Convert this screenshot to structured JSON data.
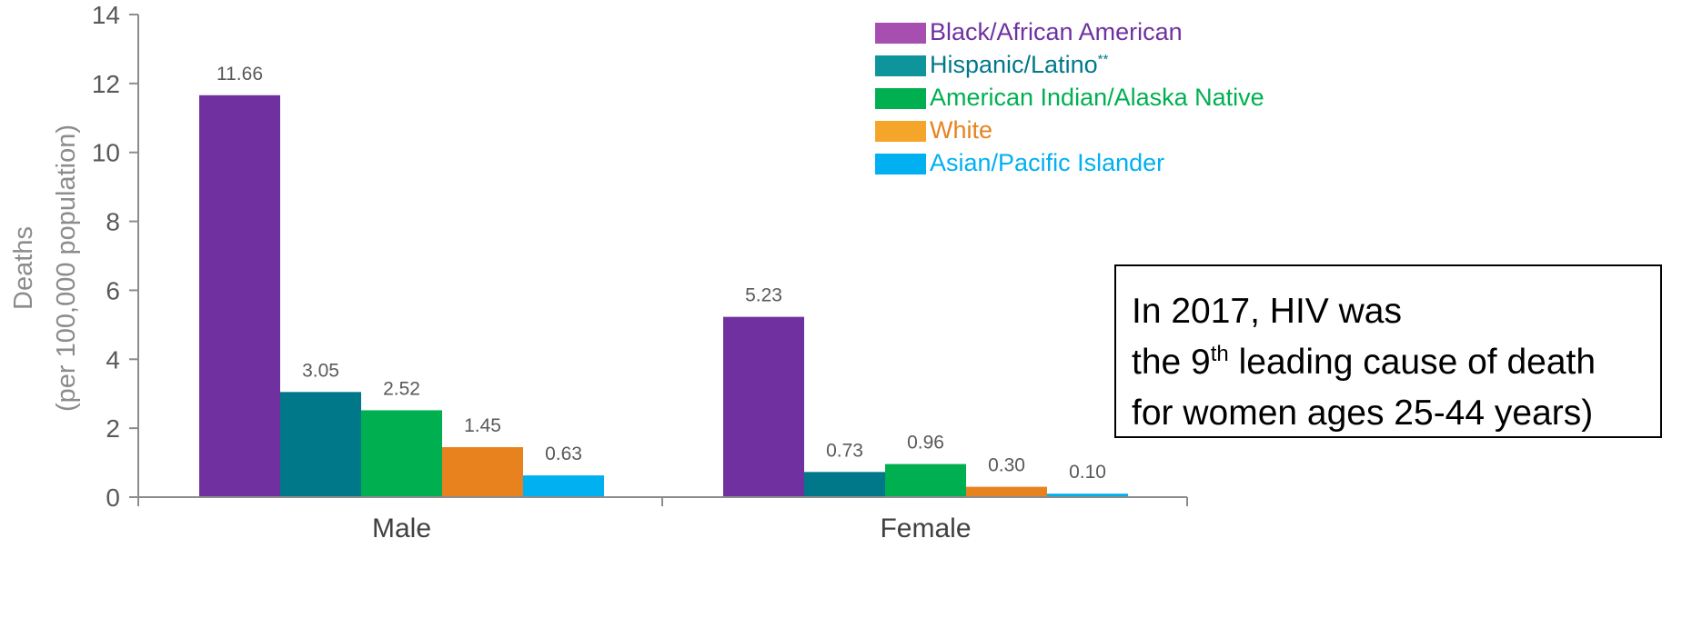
{
  "chart_data": {
    "type": "bar",
    "categories": [
      "Male",
      "Female"
    ],
    "series": [
      {
        "name": "Black/African American",
        "values": [
          11.66,
          5.23
        ],
        "color": "#7030a0",
        "legend_color": "#a64fb0",
        "text_color": "#7030a0"
      },
      {
        "name": "Hispanic/Latino",
        "superscript": "**",
        "values": [
          3.05,
          0.73
        ],
        "color": "#00788a",
        "legend_color": "#0e959b",
        "text_color": "#00788a"
      },
      {
        "name": "American Indian/Alaska Native",
        "values": [
          2.52,
          0.96
        ],
        "color": "#00b050",
        "legend_color": "#00b050",
        "text_color": "#00b050"
      },
      {
        "name": "White",
        "values": [
          1.45,
          0.3
        ],
        "color": "#e8821e",
        "legend_color": "#f5a52a",
        "text_color": "#e8821e"
      },
      {
        "name": "Asian/Pacific Islander",
        "values": [
          0.63,
          0.1
        ],
        "color": "#00b0f0",
        "legend_color": "#00b0f0",
        "text_color": "#00b0f0"
      }
    ],
    "data_labels": [
      [
        "11.66",
        "5.23"
      ],
      [
        "3.05",
        "0.73"
      ],
      [
        "2.52",
        "0.96"
      ],
      [
        "1.45",
        "0.30"
      ],
      [
        "0.63",
        "0.10"
      ]
    ],
    "ylim": [
      0,
      14
    ],
    "yticks": [
      0,
      2,
      4,
      6,
      8,
      10,
      12,
      14
    ],
    "ylabel_line1": "Deaths",
    "ylabel_line2": "(per 100,000 population)",
    "xlabel": "",
    "title": "",
    "grid": false,
    "legend_position": "top-right"
  },
  "note": {
    "line1": "In 2017, HIV was",
    "line2_pre": "the 9",
    "line2_sup": "th",
    "line2_post": " leading cause of death",
    "line3": "for women ages 25-44 years)"
  }
}
